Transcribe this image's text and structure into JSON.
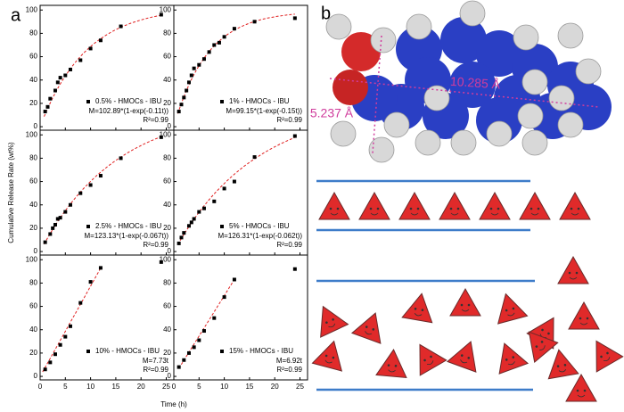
{
  "panel_a": {
    "label": "a",
    "xlabel": "Time (h)",
    "ylabel": "Cumulative Release Rate (wt%)"
  },
  "panel_b": {
    "label": "b",
    "dimensions": [
      "10.285 Å",
      "5.237 Å"
    ]
  },
  "chart_data": [
    {
      "type": "scatter",
      "series_name": "0.5% - HMOCs - IBU",
      "annotations": [
        "M=102.89*(1-exp(-0.11t))",
        "R²=0.99"
      ],
      "fit": {
        "model": "exp",
        "a": 102.89,
        "k": 0.11,
        "range": [
          0.8,
          24
        ]
      },
      "x": [
        1,
        1.5,
        2,
        3,
        3.5,
        4,
        5,
        6,
        8,
        10,
        12,
        16,
        24
      ],
      "values": [
        13,
        17,
        24,
        31,
        38,
        42,
        44,
        49,
        57,
        67,
        74,
        86,
        96
      ],
      "xlim": [
        0,
        26.5
      ],
      "ylim": [
        -3,
        104
      ],
      "xticks": [
        0,
        5,
        10,
        15,
        20,
        25
      ],
      "yticks": [
        0,
        20,
        40,
        60,
        80,
        100
      ],
      "show_xtick_labels": false
    },
    {
      "type": "scatter",
      "series_name": "1% - HMOCs - IBU",
      "annotations": [
        "M=99.15*(1-exp(-0.15t))",
        "R²=0.99"
      ],
      "fit": {
        "model": "exp",
        "a": 99.15,
        "k": 0.15,
        "range": [
          0.8,
          24
        ]
      },
      "x": [
        1,
        1.5,
        2,
        2.5,
        3,
        3.5,
        4,
        5,
        6,
        7,
        8,
        9,
        10,
        12,
        16,
        24
      ],
      "values": [
        13,
        19,
        25,
        31,
        38,
        44,
        50,
        53,
        58,
        64,
        70,
        72,
        77,
        84,
        90,
        93
      ],
      "xlim": [
        0,
        26.5
      ],
      "ylim": [
        -3,
        104
      ],
      "xticks": [
        0,
        5,
        10,
        15,
        20,
        25
      ],
      "yticks": [
        0,
        20,
        40,
        60,
        80,
        100
      ],
      "show_xtick_labels": false
    },
    {
      "type": "scatter",
      "series_name": "2.5% - HMOCs - IBU",
      "annotations": [
        "M=123.13*(1-exp(-0.067t))",
        "R²=0.99"
      ],
      "fit": {
        "model": "exp",
        "a": 123.13,
        "k": 0.067,
        "range": [
          0.8,
          24
        ]
      },
      "x": [
        1,
        2,
        2.5,
        3,
        3.5,
        4,
        5,
        6,
        8,
        10,
        12,
        16,
        24
      ],
      "values": [
        8,
        15,
        20,
        23,
        28,
        29,
        34,
        40,
        50,
        57,
        65,
        80,
        98
      ],
      "xlim": [
        0,
        26.5
      ],
      "ylim": [
        -3,
        104
      ],
      "xticks": [
        0,
        5,
        10,
        15,
        20,
        25
      ],
      "yticks": [
        0,
        20,
        40,
        60,
        80,
        100
      ],
      "show_xtick_labels": false
    },
    {
      "type": "scatter",
      "series_name": "5% - HMOCs - IBU",
      "annotations": [
        "M=126.31*(1-exp(-0.062t))",
        "R²=0.99"
      ],
      "fit": {
        "model": "exp",
        "a": 126.31,
        "k": 0.062,
        "range": [
          0.8,
          24
        ]
      },
      "x": [
        1,
        1.5,
        2,
        3,
        3.5,
        4,
        5,
        6,
        8,
        10,
        12,
        16,
        24
      ],
      "values": [
        7,
        12,
        16,
        22,
        25,
        28,
        34,
        37,
        43,
        54,
        60,
        81,
        99
      ],
      "xlim": [
        0,
        26.5
      ],
      "ylim": [
        -3,
        104
      ],
      "xticks": [
        0,
        5,
        10,
        15,
        20,
        25
      ],
      "yticks": [
        0,
        20,
        40,
        60,
        80,
        100
      ],
      "show_xtick_labels": false
    },
    {
      "type": "scatter",
      "series_name": "10% - HMOCs - IBU",
      "annotations": [
        "M=7.73t",
        "R²=0.99"
      ],
      "fit": {
        "model": "linear",
        "slope": 7.73,
        "range": [
          0.5,
          12.2
        ]
      },
      "x": [
        1,
        2,
        3,
        4,
        5,
        6,
        8,
        10,
        12,
        24
      ],
      "values": [
        6,
        12,
        19,
        27,
        34,
        43,
        63,
        81,
        93,
        98
      ],
      "xlim": [
        0,
        26.5
      ],
      "ylim": [
        -3,
        104
      ],
      "xticks": [
        0,
        5,
        10,
        15,
        20,
        25
      ],
      "yticks": [
        0,
        20,
        40,
        60,
        80,
        100
      ],
      "show_xtick_labels": true
    },
    {
      "type": "scatter",
      "series_name": "15% - HMOCs - IBU",
      "annotations": [
        "M=6.92t",
        "R²=0.99"
      ],
      "fit": {
        "model": "linear",
        "slope": 6.92,
        "range": [
          1,
          12
        ]
      },
      "x": [
        1,
        2,
        3,
        4,
        5,
        6,
        8,
        10,
        12,
        24
      ],
      "values": [
        8,
        14,
        20,
        25,
        31,
        39,
        50,
        68,
        83,
        92
      ],
      "xlim": [
        0,
        26.5
      ],
      "ylim": [
        -3,
        104
      ],
      "xticks": [
        0,
        5,
        10,
        15,
        20,
        25
      ],
      "yticks": [
        0,
        20,
        40,
        60,
        80,
        100
      ],
      "show_xtick_labels": true
    }
  ]
}
